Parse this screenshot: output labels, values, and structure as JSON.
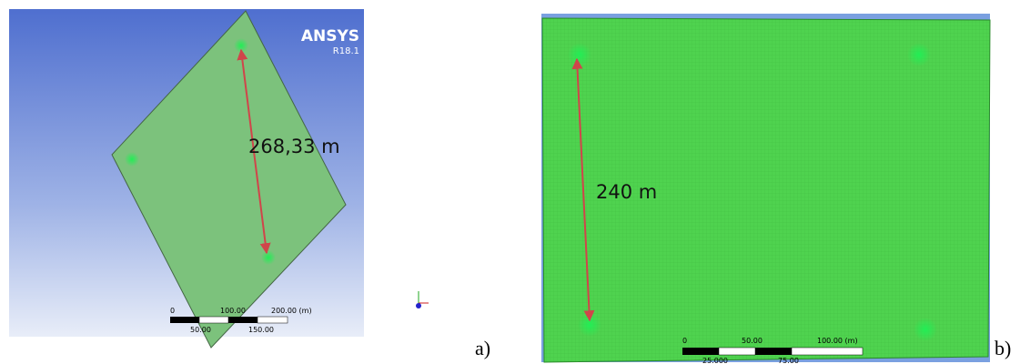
{
  "panel_a": {
    "logo": "ANSYS",
    "version": "R18.1",
    "distance": "268,33 m",
    "scale_top": [
      "0",
      "100.00",
      "200.00 (m)"
    ],
    "scale_bottom": [
      "50.00",
      "150.00"
    ],
    "label": "a)"
  },
  "panel_b": {
    "distance": "240 m",
    "scale_top": [
      "0",
      "50.00",
      "100.00 (m)"
    ],
    "scale_bottom": [
      "25.000",
      "75.00"
    ],
    "label": "b)"
  }
}
